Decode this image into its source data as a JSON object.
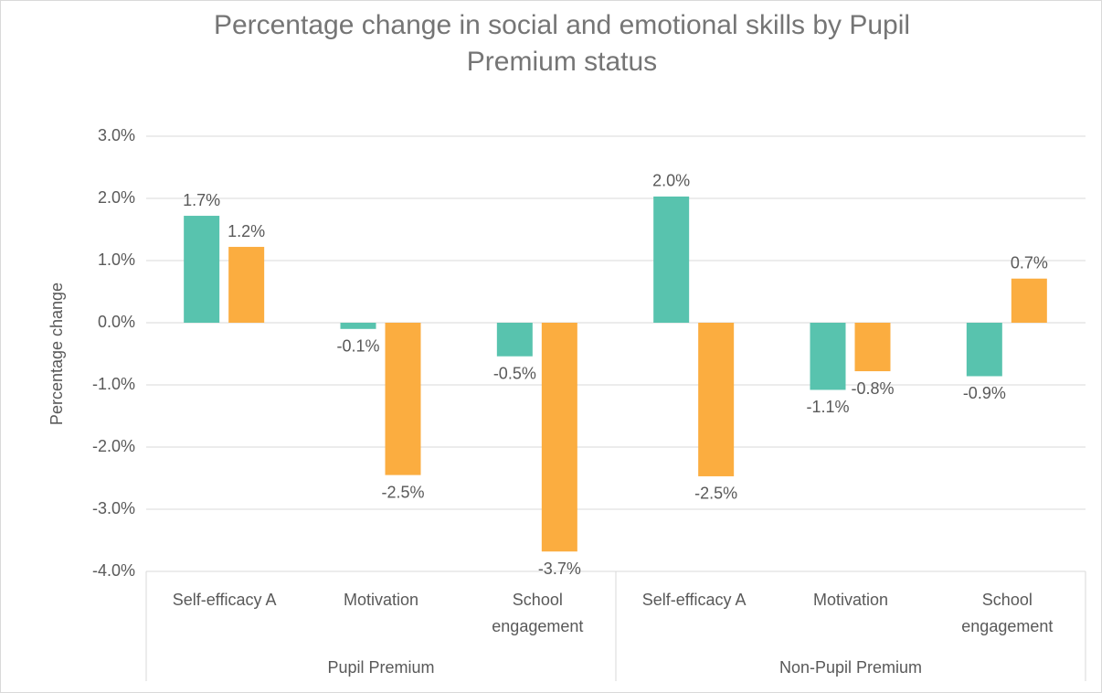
{
  "chart_data": {
    "type": "bar",
    "title": "Percentage change in social and emotional skills by Pupil Premium status",
    "y_label": "Percentage change",
    "categories": [
      "Self-efficacy A",
      "Motivation",
      "School engagement",
      "Self-efficacy A",
      "Motivation",
      "School engagement"
    ],
    "groups": [
      "Pupil Premium",
      "Non-Pupil Premium"
    ],
    "series": [
      {
        "color": "#58c3ae",
        "values": [
          1.72,
          -0.1,
          -0.54,
          2.03,
          -1.08,
          -0.86
        ],
        "value_labels": [
          "1.7%",
          "-0.1%",
          "-0.5%",
          "2.0%",
          "-1.1%",
          "-0.9%"
        ]
      },
      {
        "color": "#fbad40",
        "values": [
          1.22,
          -2.45,
          -3.68,
          -2.47,
          -0.78,
          0.71
        ],
        "value_labels": [
          "1.2%",
          "-2.5%",
          "-3.7%",
          "-2.5%",
          "-0.8%",
          "0.7%"
        ]
      }
    ],
    "ylim": [
      -4,
      3
    ],
    "yticks": [
      {
        "value": -4,
        "label": "-4.0%"
      },
      {
        "value": -3,
        "label": "-3.0%"
      },
      {
        "value": -2,
        "label": "-2.0%"
      },
      {
        "value": -1,
        "label": "-1.0%"
      },
      {
        "value": 0,
        "label": "0.0%"
      },
      {
        "value": 1,
        "label": "1.0%"
      },
      {
        "value": 2,
        "label": "2.0%"
      },
      {
        "value": 3,
        "label": "3.0%"
      }
    ],
    "grid": true
  }
}
